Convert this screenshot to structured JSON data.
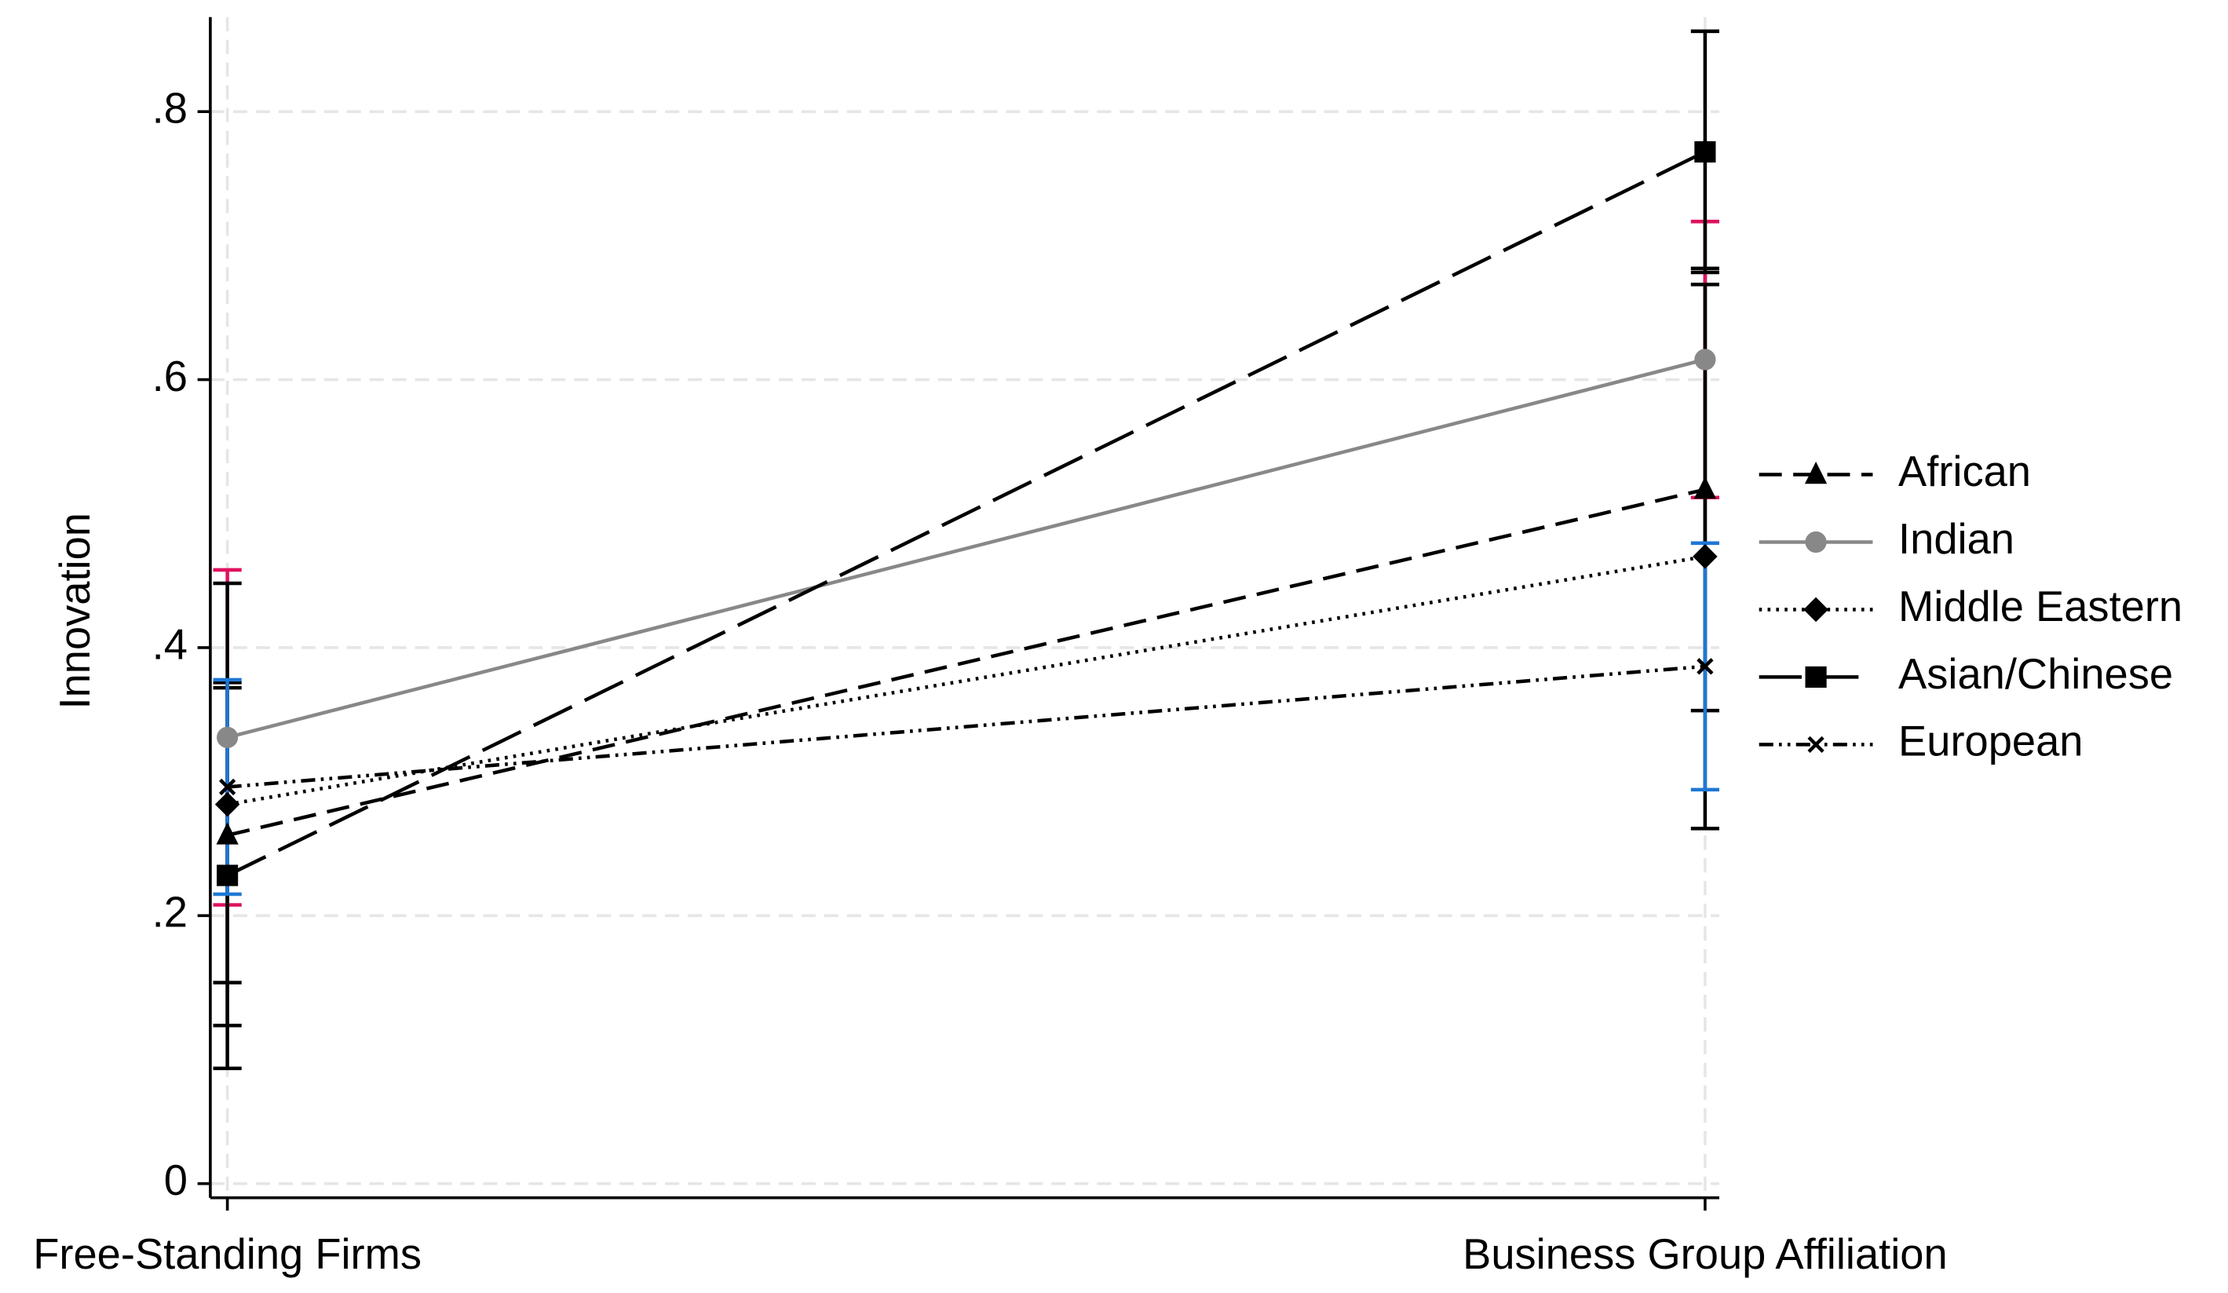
{
  "chart_data": {
    "type": "line",
    "y_label": "Innovation",
    "categories": [
      "Free-Standing Firms",
      "Business Group Affiliation"
    ],
    "series": [
      {
        "name": "African",
        "color": "#000000",
        "marker": "triangle",
        "dash": "dash",
        "values": [
          0.26,
          0.518
        ],
        "errors": [
          0.11,
          0.165
        ],
        "error_color": "#000000"
      },
      {
        "name": "Indian",
        "color": "#888888",
        "marker": "circle",
        "dash": "solid",
        "values": [
          0.333,
          0.615
        ],
        "errors": [
          0.125,
          0.103
        ],
        "error_color": "#e0115f"
      },
      {
        "name": "Middle Eastern",
        "color": "#000000",
        "marker": "diamond",
        "dash": "dot",
        "values": [
          0.283,
          0.468
        ],
        "errors": [
          0.165,
          0.203
        ],
        "error_color": "#000000"
      },
      {
        "name": "Asian/Chinese",
        "color": "#000000",
        "marker": "square",
        "dash": "long-dash",
        "values": [
          0.23,
          0.77
        ],
        "errors": [
          0.144,
          0.09
        ],
        "error_color": "#000000"
      },
      {
        "name": "European",
        "color": "#000000",
        "marker": "x",
        "dash": "dash-dot",
        "values": [
          0.296,
          0.386
        ],
        "errors": [
          0.08,
          0.092
        ],
        "error_color": "#1f77d4"
      }
    ],
    "ylim": [
      0,
      0.86
    ],
    "yticks": [
      0,
      {
        "value": 0.2,
        "label": ".2"
      },
      {
        "value": 0.4,
        "label": ".4"
      },
      {
        "value": 0.6,
        "label": ".6"
      },
      {
        "value": 0.8,
        "label": ".8"
      }
    ],
    "grid": true,
    "legend": "right"
  }
}
